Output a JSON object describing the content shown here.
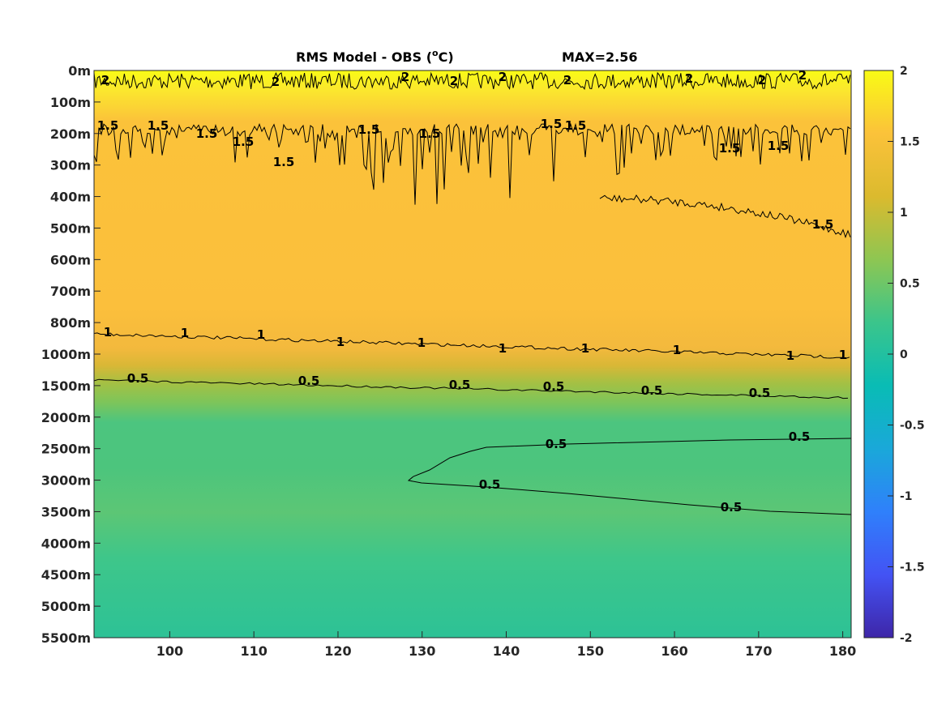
{
  "chart_data": {
    "type": "heatmap",
    "title": "RMS Model - OBS (",
    "title_superscript": "o",
    "title_unit_suffix": "C)",
    "max_annotation": "MAX=2.56",
    "xlim": [
      91,
      181
    ],
    "xticks": [
      100,
      110,
      120,
      130,
      140,
      150,
      160,
      170,
      180
    ],
    "xtick_labels": [
      "100",
      "110",
      "120",
      "130",
      "140",
      "150",
      "160",
      "170",
      "180"
    ],
    "yticks": [
      "0m",
      "100m",
      "200m",
      "300m",
      "400m",
      "500m",
      "600m",
      "700m",
      "800m",
      "1000m",
      "1500m",
      "2000m",
      "2500m",
      "3000m",
      "3500m",
      "4000m",
      "4500m",
      "5000m",
      "5500m"
    ],
    "colorbar": {
      "limits": [
        -2,
        2
      ],
      "ticks": [
        2,
        1.5,
        1,
        0.5,
        0,
        -0.5,
        -1,
        -1.5,
        -2
      ],
      "tick_labels": [
        "2",
        "1.5",
        "1",
        "0.5",
        "0",
        "-0.5",
        "-1",
        "-1.5",
        "-2"
      ],
      "colormap": "parula",
      "colors": [
        "#3e26a8",
        "#4353f4",
        "#2f80fb",
        "#1aa8d9",
        "#09bcb5",
        "#3bc58b",
        "#8ec652",
        "#dbba2e",
        "#fbc23a",
        "#f9fb15"
      ]
    },
    "depth_profile": {
      "depth_labels": [
        "0m",
        "100m",
        "200m",
        "300m",
        "400m",
        "500m",
        "600m",
        "700m",
        "800m",
        "1000m",
        "1500m",
        "2000m",
        "2500m",
        "3000m",
        "3500m",
        "4000m",
        "4500m",
        "5000m",
        "5500m"
      ],
      "approx_rms_values": [
        2.1,
        1.85,
        1.55,
        1.5,
        1.5,
        1.45,
        1.45,
        1.4,
        1.3,
        1.0,
        0.5,
        0.4,
        0.5,
        0.55,
        0.5,
        0.45,
        0.4,
        0.4,
        0.38
      ]
    },
    "contours": [
      {
        "level": 2,
        "labels": [
          "2",
          "2",
          "2",
          "2",
          "2",
          "2",
          "2",
          "2",
          "2"
        ]
      },
      {
        "level": 1.5,
        "labels": [
          "1.5",
          "1.5",
          "1.5",
          "1.5",
          "1.5",
          "1.5",
          "1.5",
          "1.5",
          "1.5",
          "1.5",
          "1.5",
          "1.5"
        ]
      },
      {
        "level": 1,
        "labels": [
          "1",
          "1",
          "1",
          "1",
          "1",
          "1",
          "1",
          "1",
          "1",
          "1"
        ]
      },
      {
        "level": 0.5,
        "labels": [
          "0.5",
          "0.5",
          "0.5",
          "0.5",
          "0.5",
          "0.5",
          "0.5",
          "0.5",
          "0.5",
          "0.5"
        ]
      }
    ],
    "grid": false,
    "legend": "colorbar-right"
  }
}
